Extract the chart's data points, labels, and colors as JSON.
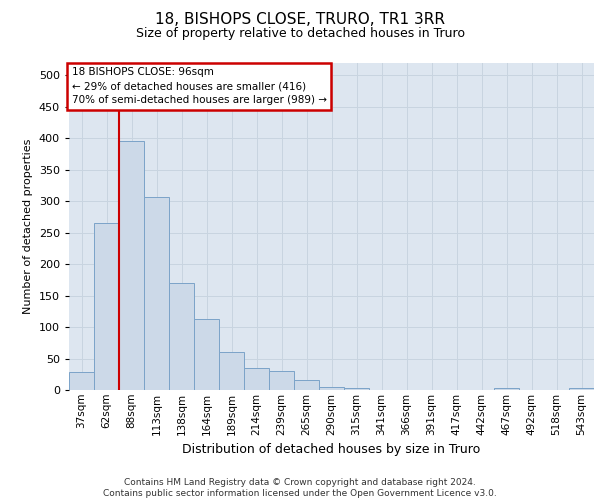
{
  "title": "18, BISHOPS CLOSE, TRURO, TR1 3RR",
  "subtitle": "Size of property relative to detached houses in Truro",
  "xlabel": "Distribution of detached houses by size in Truro",
  "ylabel": "Number of detached properties",
  "footer_line1": "Contains HM Land Registry data © Crown copyright and database right 2024.",
  "footer_line2": "Contains public sector information licensed under the Open Government Licence v3.0.",
  "bar_color": "#ccd9e8",
  "bar_edge_color": "#7ba3c8",
  "annotation_box_color": "#ffffff",
  "annotation_box_edge_color": "#cc0000",
  "vline_color": "#cc0000",
  "grid_color": "#c8d4e0",
  "bg_color": "#dde6f0",
  "categories": [
    "37sqm",
    "62sqm",
    "88sqm",
    "113sqm",
    "138sqm",
    "164sqm",
    "189sqm",
    "214sqm",
    "239sqm",
    "265sqm",
    "290sqm",
    "315sqm",
    "341sqm",
    "366sqm",
    "391sqm",
    "417sqm",
    "442sqm",
    "467sqm",
    "492sqm",
    "518sqm",
    "543sqm"
  ],
  "values": [
    28,
    265,
    395,
    307,
    170,
    113,
    60,
    35,
    30,
    16,
    5,
    3,
    0,
    0,
    0,
    0,
    0,
    3,
    0,
    0,
    3
  ],
  "vline_x": 1.5,
  "annotation_text_line1": "18 BISHOPS CLOSE: 96sqm",
  "annotation_text_line2": "← 29% of detached houses are smaller (416)",
  "annotation_text_line3": "70% of semi-detached houses are larger (989) →",
  "ylim": [
    0,
    520
  ],
  "yticks": [
    0,
    50,
    100,
    150,
    200,
    250,
    300,
    350,
    400,
    450,
    500
  ],
  "title_fontsize": 11,
  "subtitle_fontsize": 9,
  "ylabel_fontsize": 8,
  "xlabel_fontsize": 9,
  "tick_fontsize": 7.5,
  "footer_fontsize": 6.5
}
